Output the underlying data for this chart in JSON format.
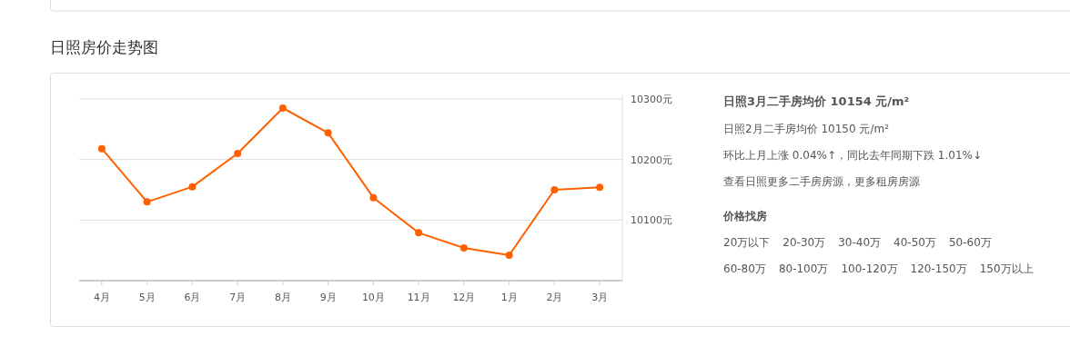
{
  "chart_data": [
    {
      "type": "line",
      "title": "日照房价走势图",
      "categories": [
        "4月",
        "5月",
        "6月",
        "7月",
        "8月",
        "9月",
        "10月",
        "11月",
        "12月",
        "1月",
        "2月",
        "3月"
      ],
      "series": [
        {
          "color": "#ff6000",
          "values": [
            10218,
            10130,
            10155,
            10210,
            10285,
            10244,
            10137,
            10079,
            10054,
            10042,
            10150,
            10154
          ]
        }
      ],
      "ylim": [
        10000,
        10300
      ],
      "yticks": [
        {
          "value": 10100,
          "label": "10100元"
        },
        {
          "value": 10200,
          "label": "10200元"
        },
        {
          "value": 10300,
          "label": "10300元"
        }
      ],
      "grid": "y",
      "marker": "circle"
    },
    {
      "type": "other",
      "annotations": [
        "日照3月二手房均价 10154 元/m²",
        "日照2月二手房均价 10150 元/m²",
        "环比上月上涨 0.04%↑，同比去年同期下跌 1.01%↓",
        "查看日照更多二手房房源，更多租房房源",
        "价格找房",
        "20万以下",
        "20-30万",
        "30-40万",
        "40-50万",
        "50-60万",
        "60-80万",
        "80-100万",
        "100-120万",
        "120-150万",
        "150万以上"
      ]
    }
  ]
}
